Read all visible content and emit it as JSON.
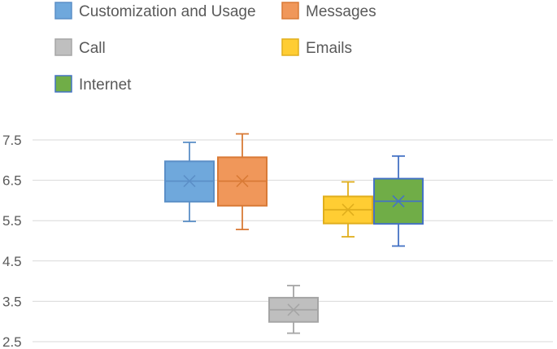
{
  "chart_data": {
    "type": "box",
    "title": "",
    "xlabel": "",
    "ylabel": "",
    "ylim": [
      2.5,
      7.5
    ],
    "yticks": [
      "7.5",
      "6.5",
      "5.5",
      "4.5",
      "3.5",
      "2.5"
    ],
    "grid": true,
    "legend_position": "top",
    "series": [
      {
        "name": "Customization and Usage",
        "color": "#6FA8DC",
        "stroke": "#5B8FC7",
        "min": 5.48,
        "q1": 5.97,
        "median": 6.48,
        "mean": 6.48,
        "q3": 6.97,
        "max": 7.44
      },
      {
        "name": "Messages",
        "color": "#F0975A",
        "stroke": "#D97A36",
        "min": 5.28,
        "q1": 5.87,
        "median": 6.48,
        "mean": 6.48,
        "q3": 7.07,
        "max": 7.65
      },
      {
        "name": "Call",
        "color": "#BFBFBF",
        "stroke": "#A5A5A5",
        "min": 2.71,
        "q1": 2.99,
        "median": 3.29,
        "mean": 3.29,
        "q3": 3.59,
        "max": 3.89
      },
      {
        "name": "Emails",
        "color": "#FFCD33",
        "stroke": "#E0AE1C",
        "min": 5.1,
        "q1": 5.43,
        "median": 5.77,
        "mean": 5.77,
        "q3": 6.1,
        "max": 6.46
      },
      {
        "name": "Internet",
        "color": "#70AD47",
        "stroke": "#4472C4",
        "min": 4.87,
        "q1": 5.42,
        "median": 5.98,
        "mean": 5.98,
        "q3": 6.54,
        "max": 7.1
      }
    ]
  }
}
